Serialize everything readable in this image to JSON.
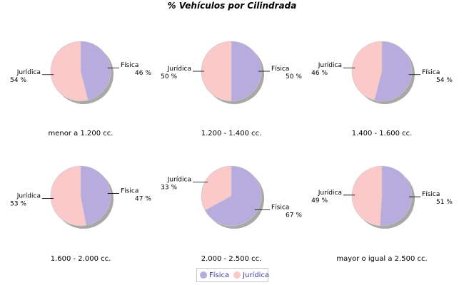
{
  "chart_data": {
    "type": "pie",
    "title": "% Vehículos por Cilindrada",
    "legend": {
      "placement": "bottom-center"
    },
    "series_names": [
      "Física",
      "Jurídica"
    ],
    "colors": {
      "Física": "#b7acdd",
      "Jurídica": "#fcc9cb",
      "shadow": "#a8a8a8"
    },
    "charts": [
      {
        "category": "menor a 1.200 cc.",
        "slices": [
          {
            "name": "Física",
            "value": 46,
            "label": "46 %"
          },
          {
            "name": "Jurídica",
            "value": 54,
            "label": "54 %"
          }
        ]
      },
      {
        "category": "1.200 - 1.400 cc.",
        "slices": [
          {
            "name": "Física",
            "value": 50,
            "label": "50 %"
          },
          {
            "name": "Jurídica",
            "value": 50,
            "label": "50 %"
          }
        ]
      },
      {
        "category": "1.400 - 1.600 cc.",
        "slices": [
          {
            "name": "Física",
            "value": 54,
            "label": "54 %"
          },
          {
            "name": "Jurídica",
            "value": 46,
            "label": "46 %"
          }
        ]
      },
      {
        "category": "1.600 - 2.000 cc.",
        "slices": [
          {
            "name": "Física",
            "value": 47,
            "label": "47 %"
          },
          {
            "name": "Jurídica",
            "value": 53,
            "label": "53 %"
          }
        ]
      },
      {
        "category": "2.000 - 2.500 cc.",
        "slices": [
          {
            "name": "Física",
            "value": 67,
            "label": "67 %"
          },
          {
            "name": "Jurídica",
            "value": 33,
            "label": "33 %"
          }
        ]
      },
      {
        "category": "mayor o igual a 2.500 cc.",
        "slices": [
          {
            "name": "Física",
            "value": 51,
            "label": "51 %"
          },
          {
            "name": "Jurídica",
            "value": 49,
            "label": "49 %"
          }
        ]
      }
    ]
  }
}
